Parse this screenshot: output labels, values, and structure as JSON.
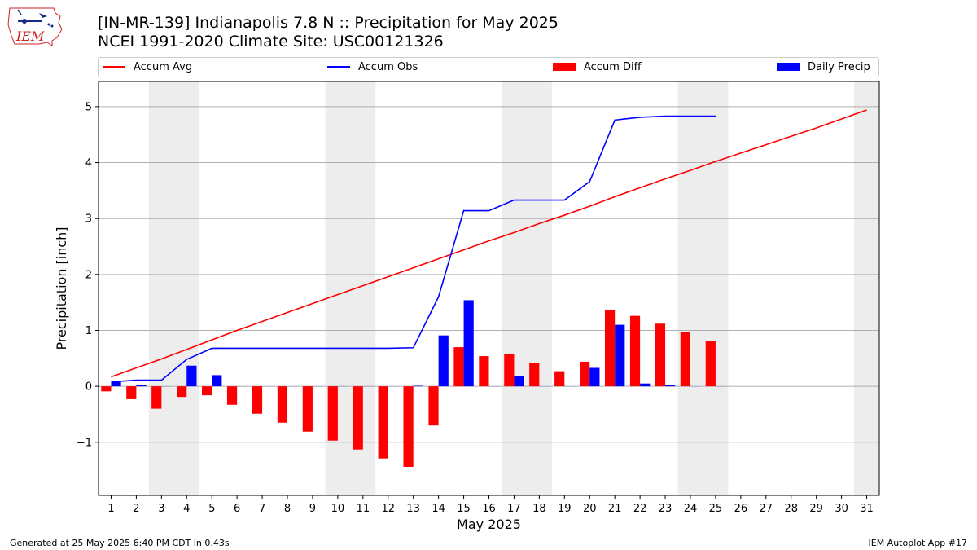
{
  "header": {
    "title_line1": "[IN-MR-139] Indianapolis 7.8 N :: Precipitation for May 2025",
    "title_line2": "NCEI 1991-2020 Climate Site: USC00121326",
    "logo_text": "IEM"
  },
  "legend": {
    "items": [
      {
        "label": "Accum Avg",
        "kind": "line",
        "color": "#ff0000"
      },
      {
        "label": "Accum Obs",
        "kind": "line",
        "color": "#0000ff"
      },
      {
        "label": "Accum Diff",
        "kind": "box",
        "color": "#ff0000"
      },
      {
        "label": "Daily Precip",
        "kind": "box",
        "color": "#0000ff"
      }
    ]
  },
  "footer": {
    "left": "Generated at 25 May 2025 6:40 PM CDT in 0.43s",
    "right": "IEM Autoplot App #17"
  },
  "chart_data": {
    "type": "bar",
    "title": "[IN-MR-139] Indianapolis 7.8 N :: Precipitation for May 2025",
    "xlabel": "May 2025",
    "ylabel": "Precipitation [inch]",
    "ylim": [
      -1.95,
      5.45
    ],
    "yticks": [
      -1,
      0,
      1,
      2,
      3,
      4,
      5
    ],
    "ytick_labels": [
      "−1",
      "0",
      "1",
      "2",
      "3",
      "4",
      "5"
    ],
    "days": [
      1,
      2,
      3,
      4,
      5,
      6,
      7,
      8,
      9,
      10,
      11,
      12,
      13,
      14,
      15,
      16,
      17,
      18,
      19,
      20,
      21,
      22,
      23,
      24,
      25,
      26,
      27,
      28,
      29,
      30,
      31
    ],
    "grid": "horizontal",
    "weekend_shading": [
      [
        3,
        4
      ],
      [
        10,
        11
      ],
      [
        17,
        18
      ],
      [
        24,
        25
      ],
      [
        31,
        31
      ]
    ],
    "series": [
      {
        "name": "Accum Avg",
        "kind": "line",
        "color": "#ff0000",
        "values": [
          0.17,
          0.33,
          0.49,
          0.66,
          0.83,
          1.0,
          1.16,
          1.32,
          1.48,
          1.64,
          1.8,
          1.96,
          2.12,
          2.28,
          2.44,
          2.6,
          2.75,
          2.91,
          3.06,
          3.22,
          3.39,
          3.55,
          3.71,
          3.86,
          4.02,
          4.17,
          4.32,
          4.47,
          4.62,
          4.78,
          4.94
        ]
      },
      {
        "name": "Accum Obs",
        "kind": "line",
        "color": "#0000ff",
        "values": [
          0.08,
          0.11,
          0.11,
          0.48,
          0.68,
          0.68,
          0.68,
          0.68,
          0.68,
          0.68,
          0.68,
          0.68,
          0.69,
          1.6,
          3.14,
          3.14,
          3.33,
          3.33,
          3.33,
          3.66,
          4.76,
          4.81,
          4.83,
          4.83,
          4.83
        ]
      },
      {
        "name": "Accum Diff",
        "kind": "bar",
        "color": "#ff0000",
        "values": [
          -0.09,
          -0.23,
          -0.4,
          -0.19,
          -0.16,
          -0.33,
          -0.49,
          -0.65,
          -0.81,
          -0.97,
          -1.13,
          -1.29,
          -1.44,
          -0.7,
          0.7,
          0.54,
          0.58,
          0.42,
          0.27,
          0.44,
          1.37,
          1.26,
          1.12,
          0.97,
          0.81
        ]
      },
      {
        "name": "Daily Precip",
        "kind": "bar",
        "color": "#0000ff",
        "values": [
          0.08,
          0.03,
          0.0,
          0.37,
          0.2,
          0.0,
          0.0,
          0.0,
          0.0,
          0.0,
          0.0,
          0.0,
          0.01,
          0.91,
          1.54,
          0.0,
          0.19,
          0.0,
          0.0,
          0.33,
          1.1,
          0.05,
          0.02,
          0.0,
          0.0
        ]
      }
    ]
  }
}
